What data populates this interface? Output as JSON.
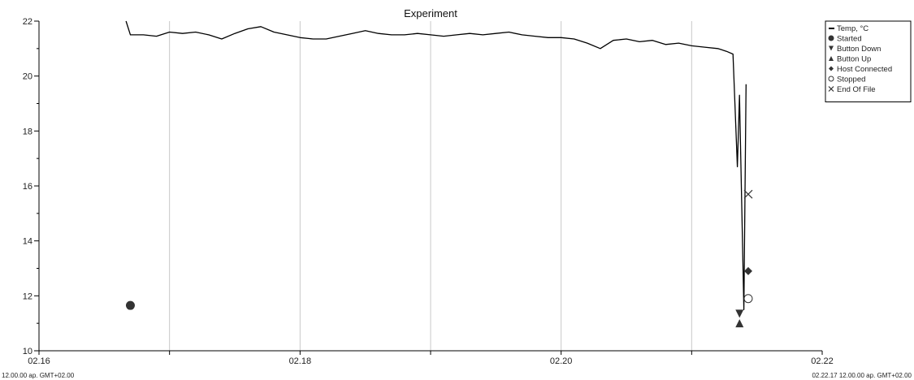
{
  "chart_data": {
    "type": "line",
    "title": "Experiment",
    "xlabel": "",
    "ylabel": "",
    "ylim": [
      10,
      22
    ],
    "xlim": [
      "02.16",
      "02.22"
    ],
    "x_ticks": [
      "02.16",
      "02.18",
      "02.20",
      "02.22"
    ],
    "y_ticks": [
      10,
      12,
      14,
      16,
      18,
      20,
      22
    ],
    "x_start_label": "12.00.00 ap. GMT+02.00",
    "x_end_label": "02.22.17 12.00.00 ap. GMT+02.00",
    "grid": "vertical",
    "legend_position": "right",
    "series": [
      {
        "name": "Temp, °C",
        "color": "#000000",
        "points": [
          [
            "02.16.40",
            22.0
          ],
          [
            "02.16.42",
            21.5
          ],
          [
            "02.16.48",
            21.5
          ],
          [
            "02.16.54",
            21.45
          ],
          [
            "02.17.00",
            21.6
          ],
          [
            "02.17.06",
            21.55
          ],
          [
            "02.17.12",
            21.6
          ],
          [
            "02.17.18",
            21.5
          ],
          [
            "02.17.24",
            21.35
          ],
          [
            "02.17.30",
            21.55
          ],
          [
            "02.17.36",
            21.72
          ],
          [
            "02.17.42",
            21.8
          ],
          [
            "02.17.48",
            21.6
          ],
          [
            "02.17.54",
            21.5
          ],
          [
            "02.18.00",
            21.4
          ],
          [
            "02.18.06",
            21.35
          ],
          [
            "02.18.12",
            21.35
          ],
          [
            "02.18.18",
            21.45
          ],
          [
            "02.18.24",
            21.55
          ],
          [
            "02.18.30",
            21.65
          ],
          [
            "02.18.36",
            21.55
          ],
          [
            "02.18.42",
            21.5
          ],
          [
            "02.18.48",
            21.5
          ],
          [
            "02.18.54",
            21.55
          ],
          [
            "02.19.00",
            21.5
          ],
          [
            "02.19.06",
            21.45
          ],
          [
            "02.19.12",
            21.5
          ],
          [
            "02.19.18",
            21.55
          ],
          [
            "02.19.24",
            21.5
          ],
          [
            "02.19.30",
            21.55
          ],
          [
            "02.19.36",
            21.6
          ],
          [
            "02.19.42",
            21.5
          ],
          [
            "02.19.48",
            21.45
          ],
          [
            "02.19.54",
            21.4
          ],
          [
            "02.20.00",
            21.4
          ],
          [
            "02.20.06",
            21.35
          ],
          [
            "02.20.12",
            21.2
          ],
          [
            "02.20.18",
            21.0
          ],
          [
            "02.20.24",
            21.3
          ],
          [
            "02.20.30",
            21.35
          ],
          [
            "02.20.36",
            21.25
          ],
          [
            "02.20.42",
            21.3
          ],
          [
            "02.20.48",
            21.15
          ],
          [
            "02.20.54",
            21.2
          ],
          [
            "02.21.00",
            21.1
          ],
          [
            "02.21.06",
            21.05
          ],
          [
            "02.21.12",
            21.0
          ],
          [
            "02.21.16",
            20.9
          ],
          [
            "02.21.19",
            20.8
          ],
          [
            "02.21.21",
            16.7
          ],
          [
            "02.21.22",
            19.3
          ],
          [
            "02.21.24",
            11.5
          ],
          [
            "02.21.25",
            19.7
          ]
        ]
      }
    ],
    "events": [
      {
        "name": "Started",
        "marker": "circle-filled",
        "points": [
          [
            "02.16.42",
            11.65
          ]
        ]
      },
      {
        "name": "Button Down",
        "marker": "triangle-down",
        "points": [
          [
            "02.21.22",
            11.35
          ]
        ]
      },
      {
        "name": "Button Up",
        "marker": "triangle-up",
        "points": [
          [
            "02.21.22",
            11.0
          ]
        ]
      },
      {
        "name": "Host Connected",
        "marker": "diamond",
        "points": [
          [
            "02.21.26",
            12.9
          ]
        ]
      },
      {
        "name": "Stopped",
        "marker": "circle-open",
        "points": [
          [
            "02.21.26",
            11.9
          ]
        ]
      },
      {
        "name": "End Of File",
        "marker": "cross",
        "points": [
          [
            "02.21.26",
            15.7
          ]
        ]
      }
    ]
  }
}
